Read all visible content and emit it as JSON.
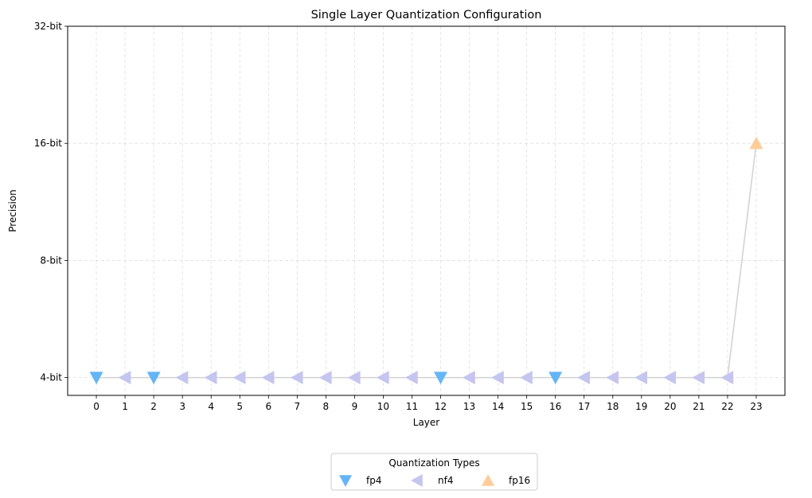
{
  "chart_data": {
    "type": "scatter",
    "title": "Single Layer Quantization Configuration",
    "xlabel": "Layer",
    "ylabel": "Precision",
    "xlim": [
      -1,
      24
    ],
    "x_ticks": [
      0,
      1,
      2,
      3,
      4,
      5,
      6,
      7,
      8,
      9,
      10,
      11,
      12,
      13,
      14,
      15,
      16,
      17,
      18,
      19,
      20,
      21,
      22,
      23
    ],
    "y_ticks": [
      {
        "value": 4,
        "label": "4-bit"
      },
      {
        "value": 8,
        "label": "8-bit"
      },
      {
        "value": 16,
        "label": "16-bit"
      },
      {
        "value": 32,
        "label": "32-bit"
      }
    ],
    "y_scale": "log2",
    "grid": true,
    "legend": {
      "title": "Quantization Types",
      "placement": "bottom-center"
    },
    "series": [
      {
        "name": "fp4",
        "marker": "triangle-down",
        "color": "#64b5f6",
        "x": [
          0,
          2,
          12,
          16
        ],
        "y": [
          4,
          4,
          4,
          4
        ]
      },
      {
        "name": "nf4",
        "marker": "triangle-left",
        "color": "#c5c5ef",
        "x": [
          1,
          3,
          4,
          5,
          6,
          7,
          8,
          9,
          10,
          11,
          13,
          14,
          15,
          17,
          18,
          19,
          20,
          21,
          22
        ],
        "y": [
          4,
          4,
          4,
          4,
          4,
          4,
          4,
          4,
          4,
          4,
          4,
          4,
          4,
          4,
          4,
          4,
          4,
          4,
          4
        ]
      },
      {
        "name": "fp16",
        "marker": "triangle-up",
        "color": "#ffcc99",
        "x": [
          23
        ],
        "y": [
          16
        ]
      }
    ],
    "connecting_line": {
      "color": "#d3d3d3",
      "x": [
        0,
        1,
        2,
        3,
        4,
        5,
        6,
        7,
        8,
        9,
        10,
        11,
        12,
        13,
        14,
        15,
        16,
        17,
        18,
        19,
        20,
        21,
        22,
        23
      ],
      "y": [
        4,
        4,
        4,
        4,
        4,
        4,
        4,
        4,
        4,
        4,
        4,
        4,
        4,
        4,
        4,
        4,
        4,
        4,
        4,
        4,
        4,
        4,
        4,
        16
      ]
    }
  }
}
